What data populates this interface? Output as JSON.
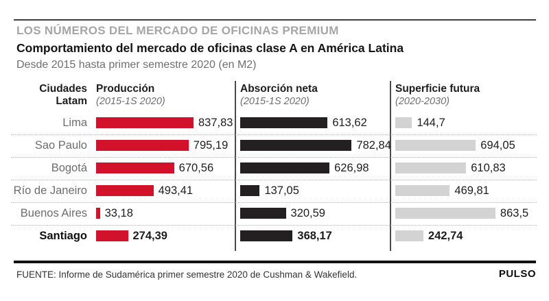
{
  "page": {
    "kicker": "LOS NÚMEROS DEL MERCADO DE OFICINAS PREMIUM",
    "title": "Comportamiento del mercado de oficinas clase A en América Latina",
    "subtitle": "Desde 2015 hasta primer semestre 2020 (en M2)",
    "source": "FUENTE: Informe de Sudamérica primer semestre 2020 de Cushman & Wakefield.",
    "brand": "PULSO"
  },
  "table": {
    "city_header": {
      "line1": "Ciudades",
      "line2": "Latam"
    },
    "columns": [
      {
        "name": "Producción",
        "period": "(2015-1S 2020)"
      },
      {
        "name": "Absorción neta",
        "period": "(2015-1S 2020)"
      },
      {
        "name": "Superficie futura",
        "period": "(2020-2030)"
      }
    ]
  },
  "chart_data": {
    "type": "bar",
    "title": "Comportamiento del mercado de oficinas clase A en América Latina",
    "subtitle": "Desde 2015 hasta primer semestre 2020 (en M2)",
    "unit": "M2",
    "categories": [
      "Lima",
      "Sao Paulo",
      "Bogotá",
      "Río de Janeiro",
      "Buenos Aires",
      "Santiago"
    ],
    "highlight_category": "Santiago",
    "series": [
      {
        "name": "Producción (2015-1S 2020)",
        "key": "produccion",
        "color": "#d2122b",
        "values": [
          837.83,
          795.19,
          670.56,
          493.41,
          33.18,
          274.39
        ],
        "labels": [
          "837,83",
          "795,19",
          "670,56",
          "493,41",
          "33,18",
          "274,39"
        ]
      },
      {
        "name": "Absorción neta (2015-1S 2020)",
        "key": "absorcion-neta",
        "color": "#241f20",
        "values": [
          613.62,
          782.84,
          626.98,
          137.05,
          320.59,
          368.17
        ],
        "labels": [
          "613,62",
          "782,84",
          "626,98",
          "137,05",
          "320,59",
          "368,17"
        ]
      },
      {
        "name": "Superficie futura (2020-2030)",
        "key": "superficie-futura",
        "color": "#d3d3d3",
        "values": [
          144.7,
          694.05,
          610.83,
          469.81,
          863.5,
          242.74
        ],
        "labels": [
          "144,7",
          "694,05",
          "610,83",
          "469,81",
          "863,5",
          "242,74"
        ]
      }
    ],
    "value_label_position": "right-of-bar",
    "grid": "dotted-row-separators",
    "legend_position": "column-headers"
  }
}
